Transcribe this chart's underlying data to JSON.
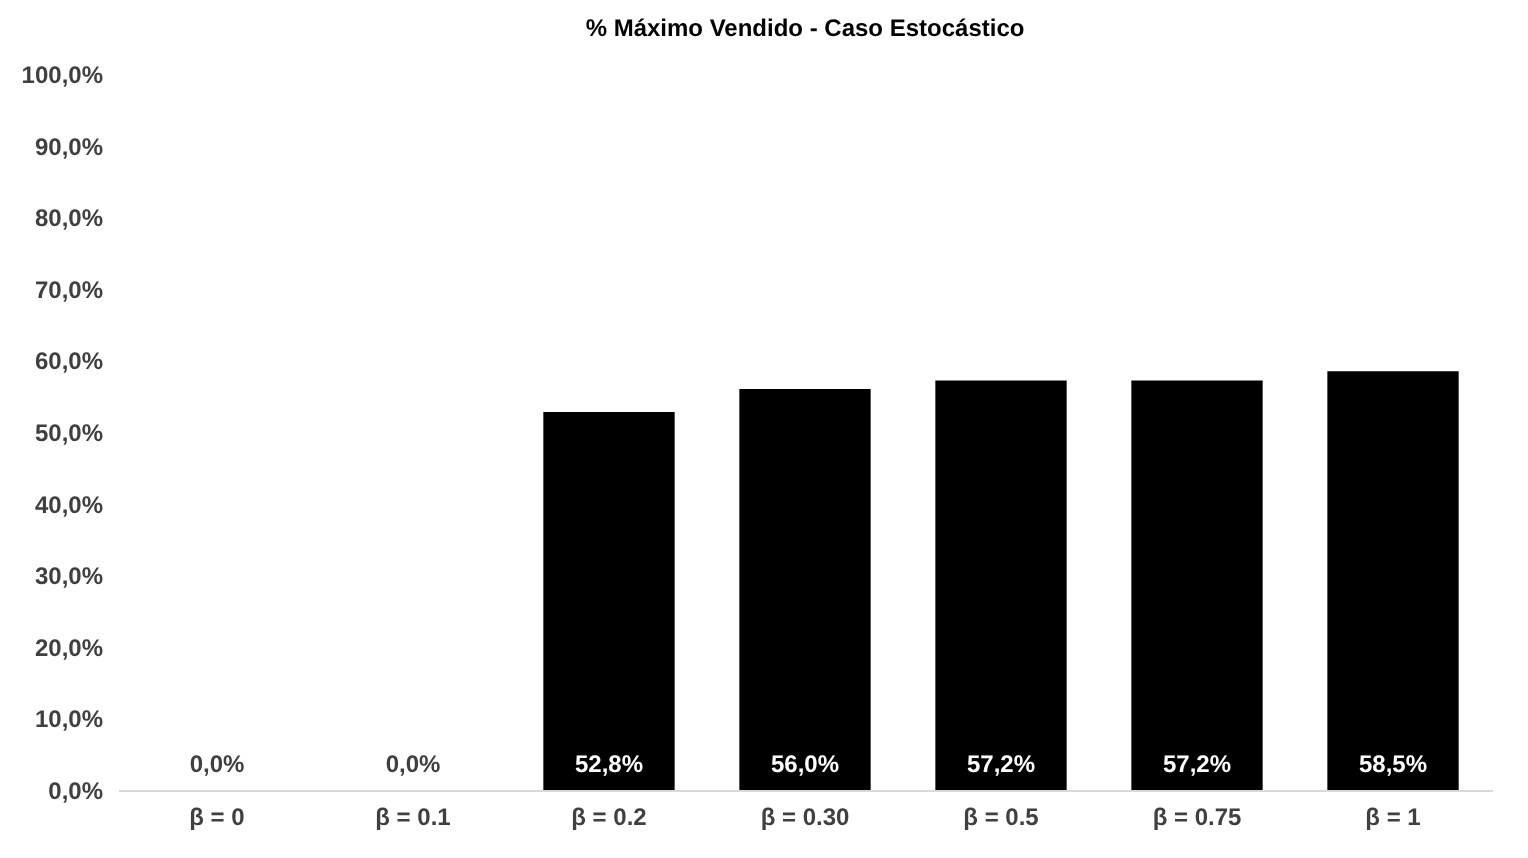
{
  "chart_data": {
    "type": "bar",
    "title": "% Máximo Vendido - Caso Estocástico",
    "categories": [
      "β = 0",
      "β = 0.1",
      "β = 0.2",
      "β = 0.30",
      "β = 0.5",
      "β = 0.75",
      "β = 1"
    ],
    "values": [
      0,
      0,
      52.8,
      56.0,
      57.2,
      57.2,
      58.5
    ],
    "value_labels": [
      "0,0%",
      "0,0%",
      "52,8%",
      "56,0%",
      "57,2%",
      "57,2%",
      "58,5%"
    ],
    "color": "#000000",
    "ylim": [
      0,
      100
    ],
    "yticks": [
      {
        "value": 0,
        "label": "0,0%"
      },
      {
        "value": 10,
        "label": "10,0%"
      },
      {
        "value": 20,
        "label": "20,0%"
      },
      {
        "value": 30,
        "label": "30,0%"
      },
      {
        "value": 40,
        "label": "40,0%"
      },
      {
        "value": 50,
        "label": "50,0%"
      },
      {
        "value": 60,
        "label": "60,0%"
      },
      {
        "value": 70,
        "label": "70,0%"
      },
      {
        "value": 80,
        "label": "80,0%"
      },
      {
        "value": 90,
        "label": "90,0%"
      },
      {
        "value": 100,
        "label": "100,0%"
      }
    ],
    "grid": false
  }
}
